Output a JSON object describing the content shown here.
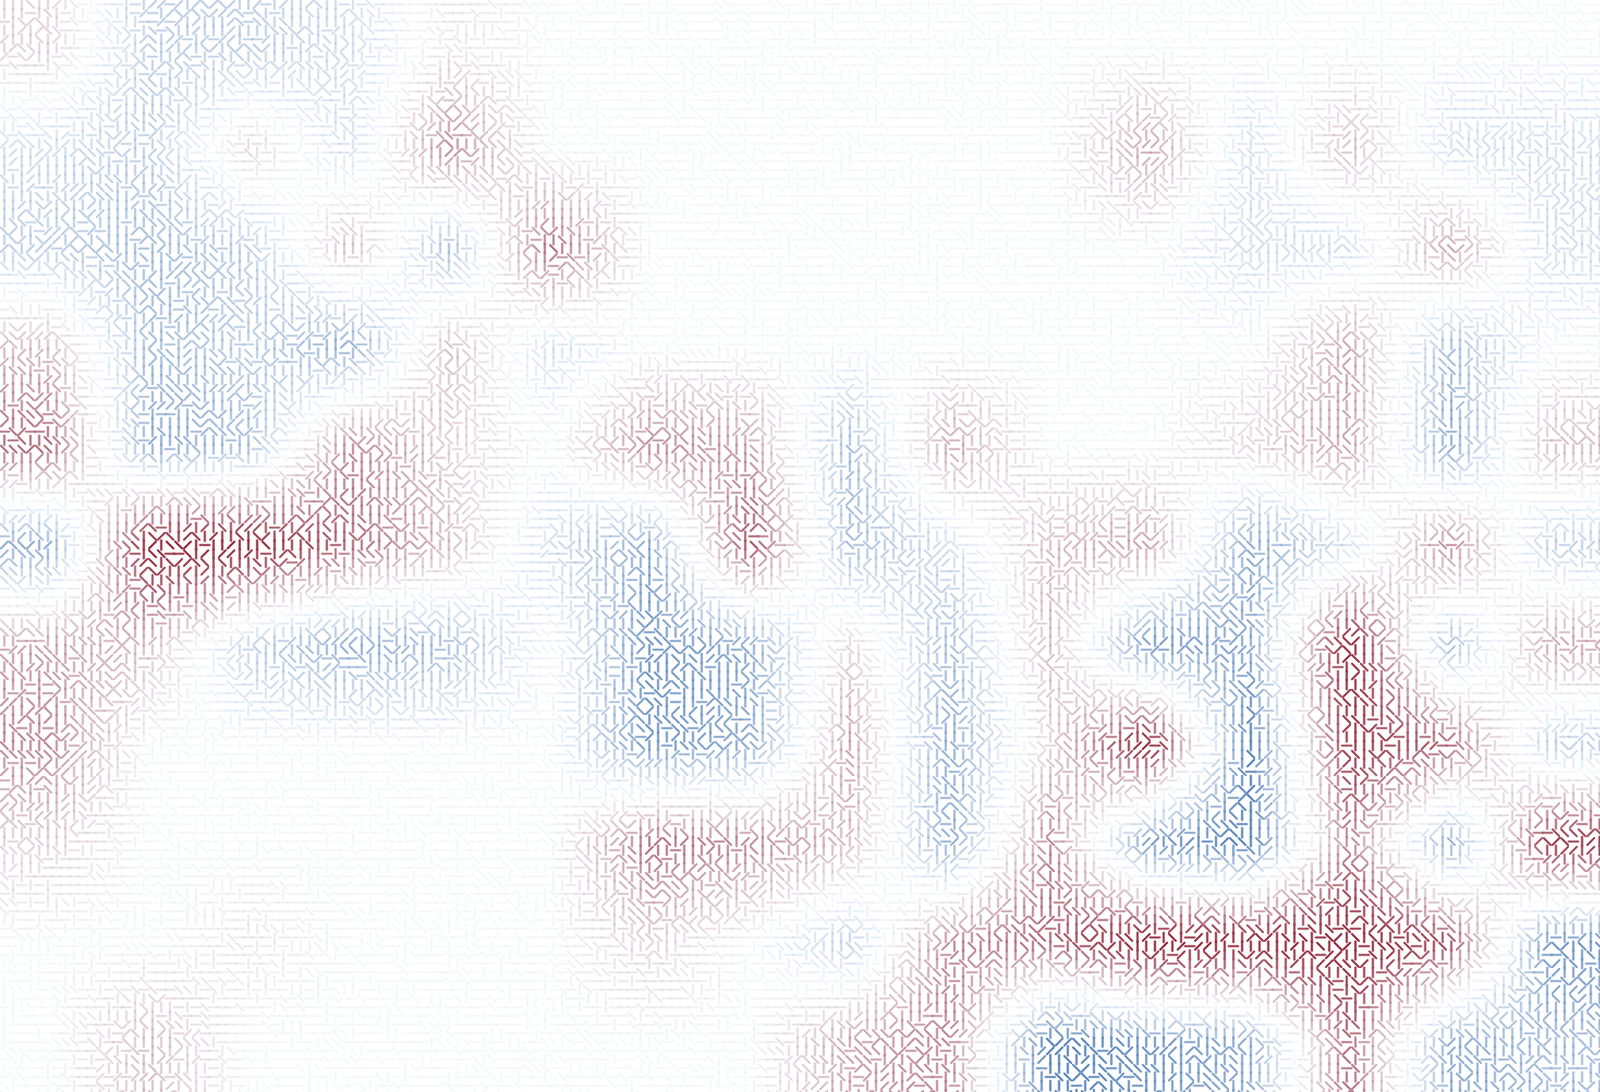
{
  "chart_data": {
    "type": "heatmap",
    "tick_labels": false,
    "color_range": [
      -1,
      1
    ],
    "cells": [
      [
        0.2,
        -0.3,
        -0.3,
        -0.2,
        0.1,
        0,
        0,
        0,
        0,
        0,
        0,
        0,
        0,
        0,
        0,
        0
      ],
      [
        -0.2,
        -0.3,
        0.2,
        -0.2,
        0.5,
        0,
        0,
        0,
        0,
        0,
        0,
        0.4,
        -0.2,
        0.3,
        -0.2,
        -0.2
      ],
      [
        -0.3,
        -0.4,
        -0.3,
        0.3,
        -0.4,
        0.6,
        0,
        0,
        0,
        0,
        0,
        0,
        -0.2,
        -0.2,
        0.4,
        -0.2
      ],
      [
        0.3,
        -0.4,
        -0.3,
        -0.5,
        0.3,
        -0.2,
        0,
        0,
        0,
        0,
        0,
        0,
        0,
        0.4,
        -0.4,
        0
      ],
      [
        0.6,
        -0.5,
        -0.4,
        0.5,
        0.2,
        0,
        0.5,
        0.4,
        -0.4,
        0.4,
        0,
        0,
        0.2,
        0.4,
        -0.5,
        0.3
      ],
      [
        -0.5,
        0.9,
        0.9,
        0.6,
        0.3,
        -0.2,
        -0.5,
        0.7,
        -0.4,
        -0.2,
        0.3,
        0.4,
        -0.5,
        -0.2,
        0.5,
        -0.3
      ],
      [
        0.4,
        0.3,
        -0.3,
        -0.5,
        -0.4,
        0,
        -0.6,
        -0.5,
        0.2,
        -0.4,
        0.3,
        -0.6,
        -0.5,
        0.9,
        -0.4,
        0.4
      ],
      [
        0.5,
        0,
        0,
        0,
        0,
        0,
        -0.6,
        -0.5,
        0.4,
        -0.5,
        0.2,
        0.9,
        -0.7,
        0.8,
        0.6,
        -0.3
      ],
      [
        0.2,
        0,
        0,
        0,
        0,
        0,
        0.6,
        0.5,
        0.3,
        -0.5,
        0.5,
        -0.6,
        -0.7,
        0.5,
        -0.5,
        0.8
      ],
      [
        0,
        0,
        0.1,
        0,
        0,
        0,
        0.2,
        0,
        -0.3,
        0.5,
        0.6,
        0.95,
        0.9,
        0.9,
        0.7,
        -0.6
      ],
      [
        0,
        0.3,
        0,
        0,
        0,
        0,
        0,
        0,
        0.4,
        0.5,
        -0.7,
        -0.6,
        -0.5,
        0.6,
        -0.5,
        -0.4
      ]
    ]
  }
}
